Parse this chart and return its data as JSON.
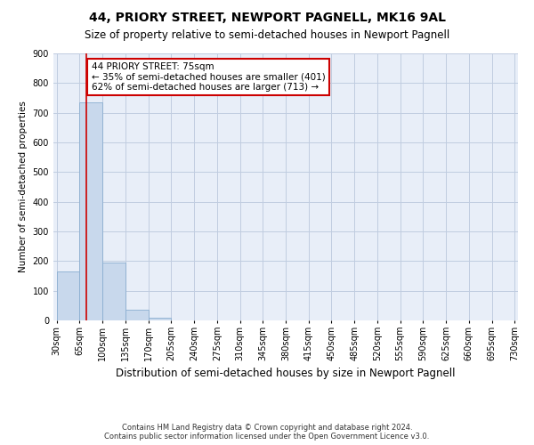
{
  "title": "44, PRIORY STREET, NEWPORT PAGNELL, MK16 9AL",
  "subtitle": "Size of property relative to semi-detached houses in Newport Pagnell",
  "xlabel": "Distribution of semi-detached houses by size in Newport Pagnell",
  "ylabel": "Number of semi-detached properties",
  "footer_line1": "Contains HM Land Registry data © Crown copyright and database right 2024.",
  "footer_line2": "Contains public sector information licensed under the Open Government Licence v3.0.",
  "bar_edges": [
    30,
    65,
    100,
    135,
    170,
    205,
    240,
    275,
    310,
    345,
    380,
    415,
    450,
    485,
    520,
    555,
    590,
    625,
    660,
    695,
    730
  ],
  "bar_heights": [
    165,
    735,
    195,
    37,
    10,
    0,
    0,
    0,
    0,
    0,
    0,
    0,
    0,
    0,
    0,
    0,
    0,
    0,
    0,
    0
  ],
  "property_size": 75,
  "annotation_title": "44 PRIORY STREET: 75sqm",
  "annotation_line2": "← 35% of semi-detached houses are smaller (401)",
  "annotation_line3": "62% of semi-detached houses are larger (713) →",
  "bar_color": "#c8d8ec",
  "bar_edge_color": "#8aaed0",
  "vline_color": "#cc0000",
  "annotation_box_color": "#ffffff",
  "annotation_box_edge": "#cc0000",
  "background_color": "#ffffff",
  "plot_bg_color": "#e8eef8",
  "grid_color": "#c0cce0",
  "title_fontsize": 10,
  "subtitle_fontsize": 8.5,
  "ylabel_fontsize": 7.5,
  "xlabel_fontsize": 8.5,
  "tick_fontsize": 7,
  "annotation_fontsize": 7.5,
  "footer_fontsize": 6,
  "ylim": [
    0,
    900
  ],
  "yticks": [
    0,
    100,
    200,
    300,
    400,
    500,
    600,
    700,
    800,
    900
  ]
}
